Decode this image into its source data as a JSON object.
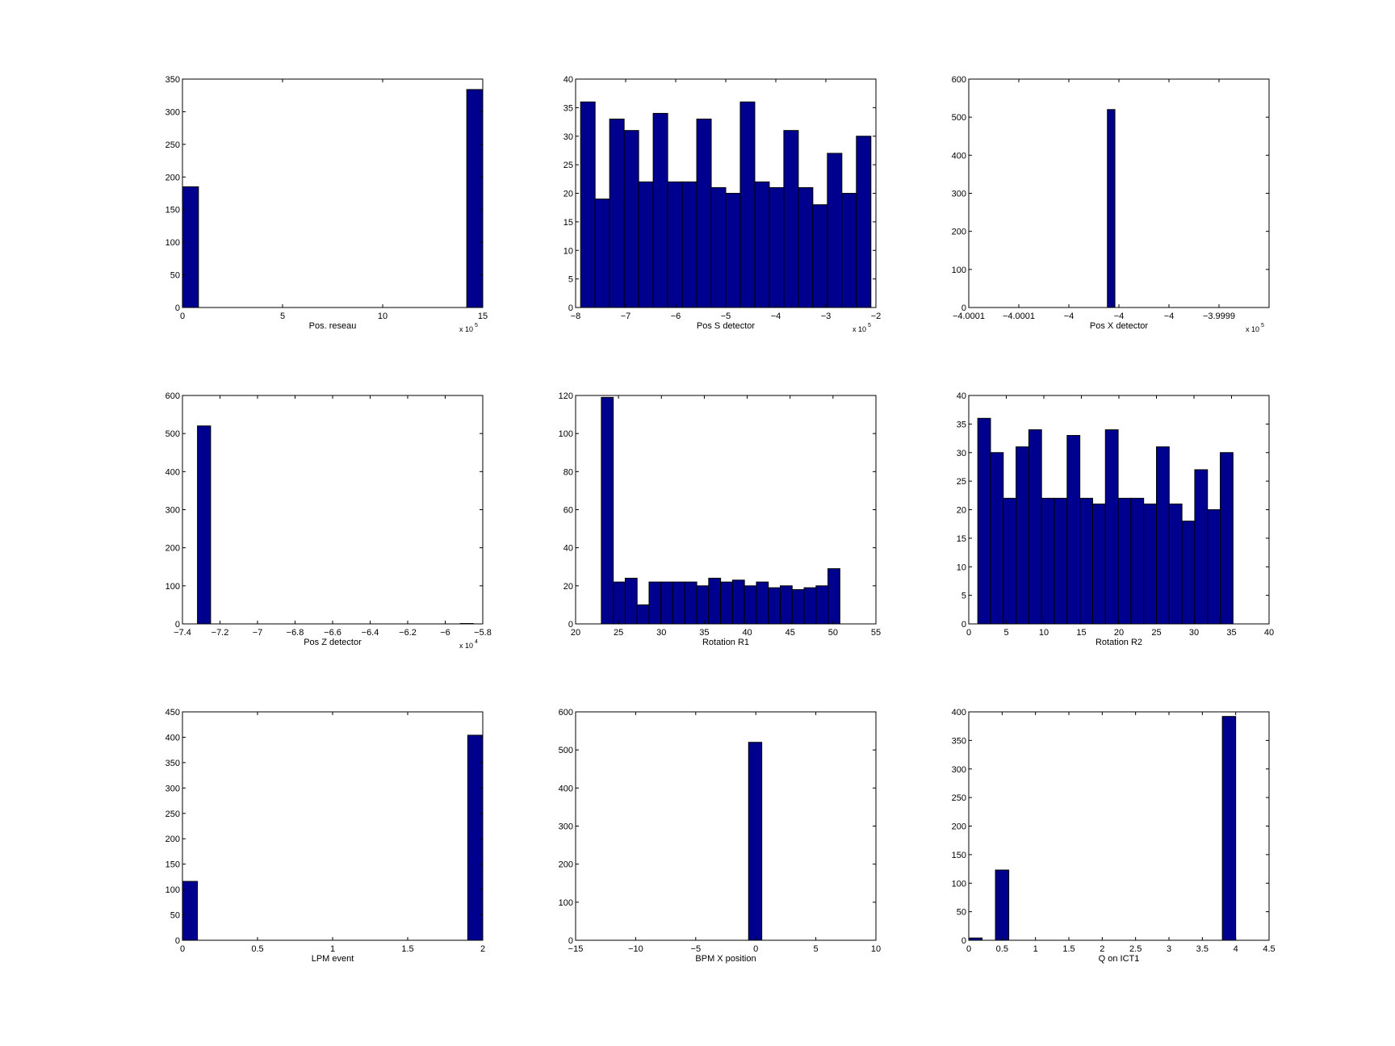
{
  "figure": {
    "background": "#ffffff",
    "bar_color": "#00008f",
    "edge_color": "#000000"
  },
  "chart_data": [
    {
      "type": "bar",
      "xlabel": "Pos. reseau",
      "x_exponent": "x 10",
      "x_exponent_power": "5",
      "xlim": [
        0,
        15
      ],
      "ylim": [
        0,
        350
      ],
      "xticks": [
        0,
        5,
        10,
        15
      ],
      "xtick_labels": [
        "0",
        "5",
        "10",
        "15"
      ],
      "yticks": [
        0,
        50,
        100,
        150,
        200,
        250,
        300,
        350
      ],
      "ytick_labels": [
        "0",
        "50",
        "100",
        "150",
        "200",
        "250",
        "300",
        "350"
      ],
      "bars": [
        [
          0,
          0.8,
          185
        ],
        [
          14.2,
          15,
          334
        ]
      ]
    },
    {
      "type": "bar",
      "xlabel": "Pos S detector",
      "x_exponent": "x 10",
      "x_exponent_power": "5",
      "xlim": [
        -8,
        -2
      ],
      "ylim": [
        0,
        40
      ],
      "xticks": [
        -8,
        -7,
        -6,
        -5,
        -4,
        -3,
        -2
      ],
      "xtick_labels": [
        "−8",
        "−7",
        "−6",
        "−5",
        "−4",
        "−3",
        "−2"
      ],
      "yticks": [
        0,
        5,
        10,
        15,
        20,
        25,
        30,
        35,
        40
      ],
      "ytick_labels": [
        "0",
        "5",
        "10",
        "15",
        "20",
        "25",
        "30",
        "35",
        "40"
      ],
      "bin_start": -7.9,
      "bin_width": 0.29,
      "values": [
        36,
        19,
        33,
        31,
        22,
        34,
        22,
        22,
        33,
        21,
        20,
        36,
        22,
        21,
        31,
        21,
        18,
        27,
        20,
        30
      ]
    },
    {
      "type": "bar",
      "xlabel": "Pos X detector",
      "x_exponent": "x 10",
      "x_exponent_power": "5",
      "xlim": [
        0,
        6
      ],
      "ylim": [
        0,
        600
      ],
      "xticks": [
        0,
        1,
        2,
        3,
        4,
        5
      ],
      "xtick_labels": [
        "−4.0001",
        "−4.0001",
        "−4",
        "−4",
        "−4",
        "−3.9999"
      ],
      "yticks": [
        0,
        100,
        200,
        300,
        400,
        500,
        600
      ],
      "ytick_labels": [
        "0",
        "100",
        "200",
        "300",
        "400",
        "500",
        "600"
      ],
      "bars": [
        [
          2.77,
          2.92,
          520
        ]
      ]
    },
    {
      "type": "bar",
      "xlabel": "Pos Z detector",
      "x_exponent": "x 10",
      "x_exponent_power": "4",
      "xlim": [
        -7.4,
        -5.8
      ],
      "ylim": [
        0,
        600
      ],
      "xticks": [
        -7.4,
        -7.2,
        -7,
        -6.8,
        -6.6,
        -6.4,
        -6.2,
        -6,
        -5.8
      ],
      "xtick_labels": [
        "−7.4",
        "−7.2",
        "−7",
        "−6.8",
        "−6.6",
        "−6.4",
        "−6.2",
        "−6",
        "−5.8"
      ],
      "yticks": [
        0,
        100,
        200,
        300,
        400,
        500,
        600
      ],
      "ytick_labels": [
        "0",
        "100",
        "200",
        "300",
        "400",
        "500",
        "600"
      ],
      "bars": [
        [
          -7.32,
          -7.25,
          520
        ],
        [
          -5.92,
          -5.85,
          1
        ]
      ]
    },
    {
      "type": "bar",
      "xlabel": "Rotation R1",
      "xlim": [
        20,
        55
      ],
      "ylim": [
        0,
        120
      ],
      "xticks": [
        20,
        25,
        30,
        35,
        40,
        45,
        50,
        55
      ],
      "xtick_labels": [
        "20",
        "25",
        "30",
        "35",
        "40",
        "45",
        "50",
        "55"
      ],
      "yticks": [
        0,
        20,
        40,
        60,
        80,
        100,
        120
      ],
      "ytick_labels": [
        "0",
        "20",
        "40",
        "60",
        "80",
        "100",
        "120"
      ],
      "bin_start": 23.0,
      "bin_width": 1.39,
      "values": [
        119,
        22,
        24,
        10,
        22,
        22,
        22,
        22,
        20,
        24,
        22,
        23,
        20,
        22,
        19,
        20,
        18,
        19,
        20,
        29
      ]
    },
    {
      "type": "bar",
      "xlabel": "Rotation R2",
      "xlim": [
        0,
        40
      ],
      "ylim": [
        0,
        40
      ],
      "xticks": [
        0,
        5,
        10,
        15,
        20,
        25,
        30,
        35,
        40
      ],
      "xtick_labels": [
        "0",
        "5",
        "10",
        "15",
        "20",
        "25",
        "30",
        "35",
        "40"
      ],
      "yticks": [
        0,
        5,
        10,
        15,
        20,
        25,
        30,
        35,
        40
      ],
      "ytick_labels": [
        "0",
        "5",
        "10",
        "15",
        "20",
        "25",
        "30",
        "35",
        "40"
      ],
      "bin_start": 1.2,
      "bin_width": 1.7,
      "values": [
        36,
        30,
        22,
        31,
        34,
        22,
        22,
        33,
        22,
        21,
        34,
        22,
        22,
        21,
        31,
        21,
        18,
        27,
        20,
        30
      ]
    },
    {
      "type": "bar",
      "xlabel": "LPM event",
      "xlim": [
        0,
        2
      ],
      "ylim": [
        0,
        450
      ],
      "xticks": [
        0,
        0.5,
        1,
        1.5,
        2
      ],
      "xtick_labels": [
        "0",
        "0.5",
        "1",
        "1.5",
        "2"
      ],
      "yticks": [
        0,
        50,
        100,
        150,
        200,
        250,
        300,
        350,
        400,
        450
      ],
      "ytick_labels": [
        "0",
        "50",
        "100",
        "150",
        "200",
        "250",
        "300",
        "350",
        "400",
        "450"
      ],
      "bars": [
        [
          0,
          0.1,
          116
        ],
        [
          1.9,
          2,
          404
        ]
      ]
    },
    {
      "type": "bar",
      "xlabel": "BPM X position",
      "xlim": [
        -15,
        10
      ],
      "ylim": [
        0,
        600
      ],
      "xticks": [
        -15,
        -10,
        -5,
        0,
        5,
        10
      ],
      "xtick_labels": [
        "−15",
        "−10",
        "−5",
        "0",
        "5",
        "10"
      ],
      "yticks": [
        0,
        100,
        200,
        300,
        400,
        500,
        600
      ],
      "ytick_labels": [
        "0",
        "100",
        "200",
        "300",
        "400",
        "500",
        "600"
      ],
      "bars": [
        [
          -0.6,
          0.5,
          520
        ]
      ]
    },
    {
      "type": "bar",
      "xlabel": "Q on ICT1",
      "xlim": [
        0,
        4.5
      ],
      "ylim": [
        0,
        400
      ],
      "xticks": [
        0,
        0.5,
        1,
        1.5,
        2,
        2.5,
        3,
        3.5,
        4,
        4.5
      ],
      "xtick_labels": [
        "0",
        "0.5",
        "1",
        "1.5",
        "2",
        "2.5",
        "3",
        "3.5",
        "4",
        "4.5"
      ],
      "yticks": [
        0,
        50,
        100,
        150,
        200,
        250,
        300,
        350,
        400
      ],
      "ytick_labels": [
        "0",
        "50",
        "100",
        "150",
        "200",
        "250",
        "300",
        "350",
        "400"
      ],
      "bars": [
        [
          0,
          0.2,
          4
        ],
        [
          0.4,
          0.6,
          123
        ],
        [
          3.8,
          4.0,
          392
        ]
      ]
    }
  ]
}
